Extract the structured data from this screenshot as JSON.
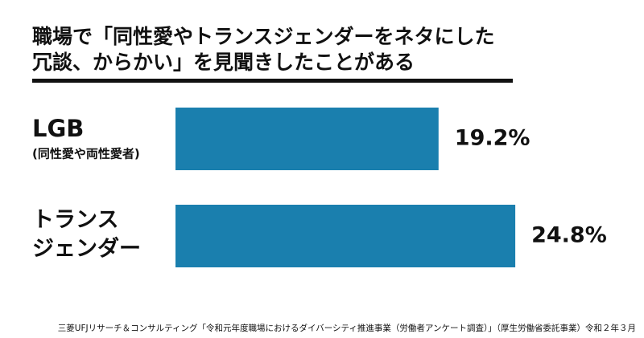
{
  "chart_data": {
    "type": "bar",
    "orientation": "horizontal",
    "title": [
      "職場で「同性愛やトランスジェンダーをネタにした",
      "冗談、からかい」を見聞きしたことがある"
    ],
    "categories": [
      [
        "LGB"
      ],
      [
        "トランス",
        "ジェンダー"
      ]
    ],
    "category_notes": [
      "(同性愛や両性愛者)",
      null
    ],
    "values": [
      19.2,
      24.8
    ],
    "value_labels": [
      "19.2%",
      "24.8%"
    ],
    "color": "#1a7fae",
    "source": "三菱UFJリサーチ＆コンサルティング「令和元年度職場におけるダイバーシティ推進事業（労働者アンケート調査）」（厚生労働省委託事業）令和２年３月"
  }
}
